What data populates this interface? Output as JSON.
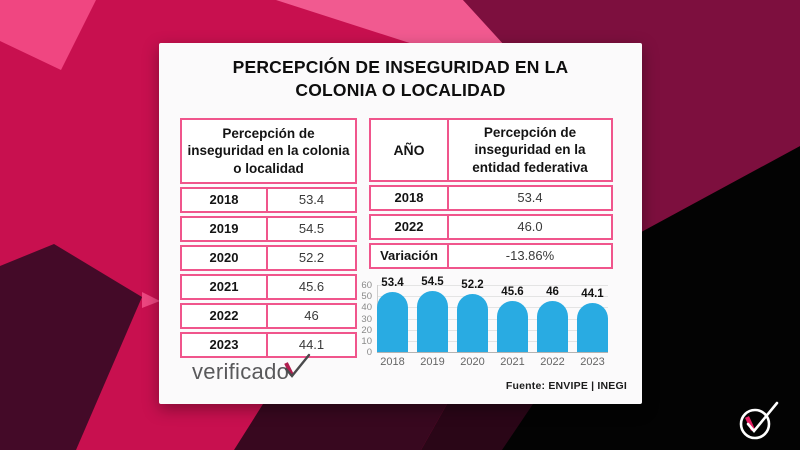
{
  "card": {
    "title_line1": "PERCEPCIÓN DE INSEGURIDAD EN LA",
    "title_line2": "COLONIA O LOCALIDAD",
    "source": "Fuente: ENVIPE | INEGI",
    "brand_wordmark": "verificado"
  },
  "left_table": {
    "header": "Percepción de inseguridad en la colonia o localidad",
    "rows": [
      {
        "year": "2018",
        "value": "53.4"
      },
      {
        "year": "2019",
        "value": "54.5"
      },
      {
        "year": "2020",
        "value": "52.2"
      },
      {
        "year": "2021",
        "value": "45.6"
      },
      {
        "year": "2022",
        "value": "46"
      },
      {
        "year": "2023",
        "value": "44.1"
      }
    ]
  },
  "right_table": {
    "col1_header": "AÑO",
    "col2_header": "Percepción de inseguridad en la entidad federativa",
    "rows": [
      {
        "label": "2018",
        "value": "53.4"
      },
      {
        "label": "2022",
        "value": "46.0"
      },
      {
        "label": "Variación",
        "value": "-13.86%"
      }
    ]
  },
  "chart_data": {
    "type": "bar",
    "title": "",
    "xlabel": "",
    "ylabel": "",
    "categories": [
      "2018",
      "2019",
      "2020",
      "2021",
      "2022",
      "2023"
    ],
    "values": [
      53.4,
      54.5,
      52.2,
      45.6,
      46,
      44.1
    ],
    "value_labels": [
      "53.4",
      "54.5",
      "52.2",
      "45.6",
      "46",
      "44.1"
    ],
    "ylim": [
      0,
      60
    ],
    "ytick_step": 10,
    "grid": true,
    "legend": "none",
    "bar_color": "#29ABE2",
    "source": "Fuente: ENVIPE | INEGI"
  },
  "colors": {
    "crimson_bg": "#C8104F",
    "light_pink": "#F04681",
    "stripe_pink": "#F15A90",
    "maroon": "#7D0F3E",
    "dark_plum": "#440A28",
    "black": "#030303",
    "card_bg": "#FBFAFB",
    "table_border": "#F0558C",
    "bar_blue": "#29ABE2"
  },
  "icons": {
    "badge": "verificado-check-badge",
    "brand_check": "checkmark-through-o"
  }
}
